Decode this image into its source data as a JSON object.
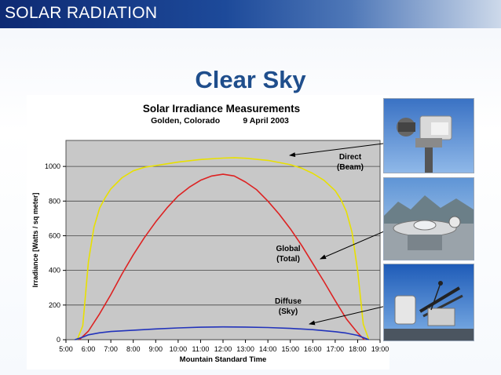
{
  "slide": {
    "header_title": "SOLAR RADIATION",
    "heading": "Clear Sky"
  },
  "colors": {
    "header_bar": "#1d4a9a",
    "heading": "#1f4e8c",
    "plot_background": "#c8c8c8",
    "direct": "#e8e000",
    "global": "#dd2222",
    "diffuse": "#2233bb"
  },
  "annotations": {
    "direct": [
      "Direct",
      "(Beam)"
    ],
    "global": [
      "Global",
      "(Total)"
    ],
    "diffuse": [
      "Diffuse",
      "(Sky)"
    ]
  },
  "photos": [
    "tracker-instrument-photo",
    "pyranometer-station-photo",
    "diffuse-tracker-photo"
  ],
  "chart_data": {
    "type": "line",
    "title": "Solar Irradiance Measurements",
    "subtitle": "Golden, Colorado          9 April 2003",
    "xlabel": "Mountain Standard Time",
    "ylabel": "Irradiance [Watts / sq meter]",
    "xlim": [
      5,
      19
    ],
    "ylim": [
      0,
      1150
    ],
    "x_ticks": [
      5,
      6,
      7,
      8,
      9,
      10,
      11,
      12,
      13,
      14,
      15,
      16,
      17,
      18,
      19
    ],
    "x_tick_labels": [
      "5:00",
      "6:00",
      "7:00",
      "8:00",
      "9:00",
      "10:00",
      "11:00",
      "12:00",
      "13:00",
      "14:00",
      "15:00",
      "16:00",
      "17:00",
      "18:00",
      "19:00"
    ],
    "y_ticks": [
      0,
      200,
      400,
      600,
      800,
      1000
    ],
    "y_tick_labels": [
      "0",
      "200",
      "400",
      "600",
      "800",
      "1000"
    ],
    "grid": "horizontal",
    "legend": "none",
    "series": [
      {
        "name": "Direct (Beam)",
        "color": "#e8e000",
        "x": [
          5.5,
          5.75,
          6.0,
          6.25,
          6.5,
          6.75,
          7.0,
          7.5,
          8.0,
          8.5,
          9.0,
          9.5,
          10.0,
          11.0,
          12.0,
          12.5,
          13.0,
          14.0,
          15.0,
          15.5,
          16.0,
          16.5,
          17.0,
          17.25,
          17.5,
          17.75,
          18.0,
          18.25,
          18.5
        ],
        "y": [
          0,
          80,
          450,
          650,
          760,
          820,
          870,
          935,
          975,
          995,
          1005,
          1015,
          1025,
          1040,
          1048,
          1050,
          1047,
          1035,
          1010,
          990,
          960,
          920,
          860,
          810,
          740,
          620,
          400,
          90,
          0
        ]
      },
      {
        "name": "Global (Total)",
        "color": "#dd2222",
        "x": [
          5.6,
          6.0,
          6.5,
          7.0,
          7.5,
          8.0,
          8.5,
          9.0,
          9.5,
          10.0,
          10.5,
          11.0,
          11.5,
          12.0,
          12.5,
          13.0,
          13.5,
          14.0,
          14.5,
          15.0,
          15.5,
          16.0,
          16.5,
          17.0,
          17.5,
          18.0,
          18.3
        ],
        "y": [
          0,
          50,
          150,
          260,
          380,
          490,
          590,
          680,
          760,
          830,
          880,
          920,
          945,
          955,
          945,
          910,
          865,
          800,
          725,
          640,
          545,
          440,
          335,
          225,
          120,
          40,
          0
        ]
      },
      {
        "name": "Diffuse (Sky)",
        "color": "#2233bb",
        "x": [
          5.4,
          5.75,
          6.0,
          6.5,
          7.0,
          8.0,
          9.0,
          10.0,
          11.0,
          12.0,
          13.0,
          14.0,
          15.0,
          16.0,
          17.0,
          17.5,
          18.0,
          18.25,
          18.5
        ],
        "y": [
          0,
          15,
          28,
          40,
          47,
          55,
          62,
          68,
          72,
          74,
          73,
          70,
          65,
          58,
          46,
          38,
          25,
          12,
          0
        ]
      }
    ]
  }
}
